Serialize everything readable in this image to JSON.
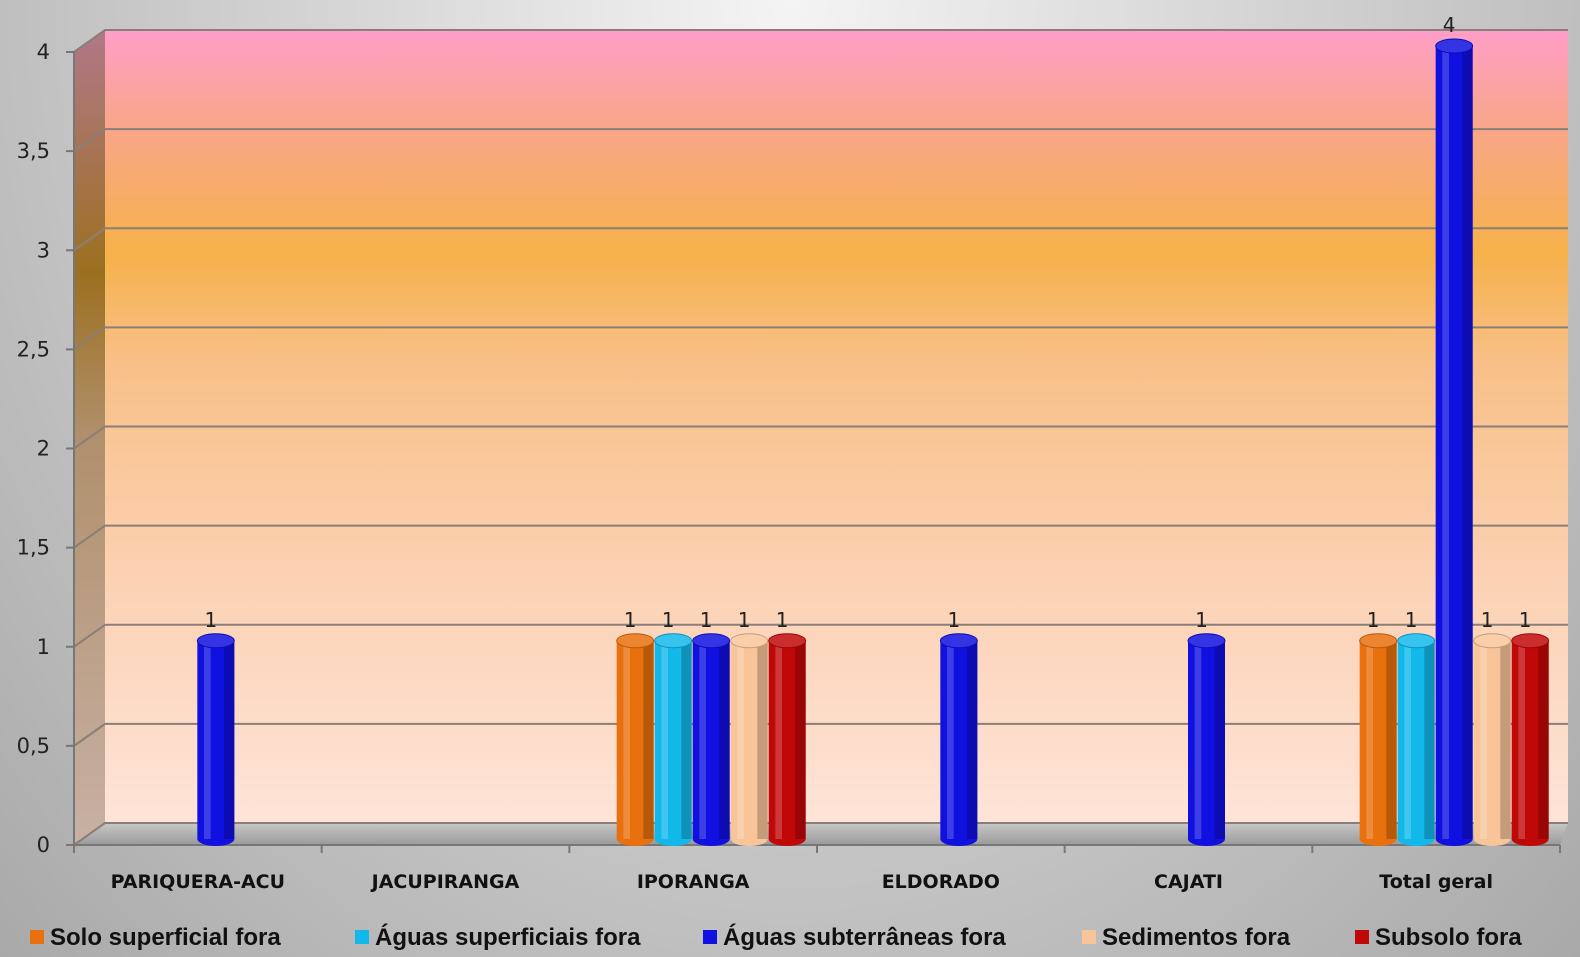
{
  "chart_data": {
    "type": "bar",
    "style": "3d-cylinder",
    "categories": [
      "PARIQUERA-ACU",
      "JACUPIRANGA",
      "IPORANGA",
      "ELDORADO",
      "CAJATI",
      "Total geral"
    ],
    "ylim": [
      0,
      4
    ],
    "yticks": [
      "0",
      "0,5",
      "1",
      "1,5",
      "2",
      "2,5",
      "3",
      "3,5",
      "4"
    ],
    "grid": true,
    "legend_position": "bottom",
    "series": [
      {
        "name": "Solo superficial fora",
        "color": "#e8700d",
        "values": [
          null,
          null,
          1,
          null,
          null,
          1
        ]
      },
      {
        "name": "Águas superficiais fora",
        "color": "#12b8ea",
        "values": [
          null,
          null,
          1,
          null,
          null,
          1
        ]
      },
      {
        "name": "Águas subterrâneas fora",
        "color": "#1010e0",
        "values": [
          1,
          null,
          1,
          1,
          1,
          4
        ]
      },
      {
        "name": "Sedimentos fora",
        "color": "#f8c59a",
        "values": [
          null,
          null,
          1,
          null,
          null,
          1
        ]
      },
      {
        "name": "Subsolo fora",
        "color": "#c00808",
        "values": [
          null,
          null,
          1,
          null,
          null,
          1
        ]
      }
    ]
  }
}
